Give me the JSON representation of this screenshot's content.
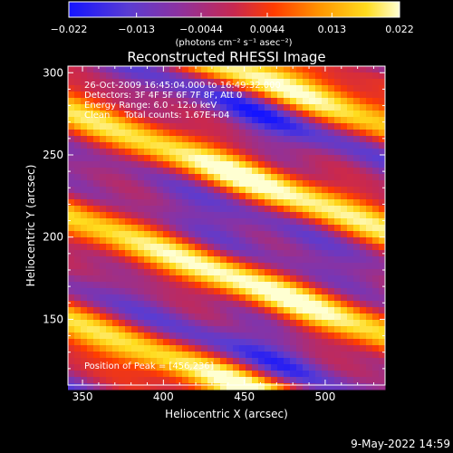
{
  "chart_data": {
    "type": "heatmap",
    "title": "Reconstructed RHESSI Image",
    "xlabel": "Heliocentric X (arcsec)",
    "ylabel": "Heliocentric Y (arcsec)",
    "xlim": [
      341,
      537
    ],
    "ylim": [
      110,
      304
    ],
    "x_ticks": [
      350,
      400,
      450,
      500
    ],
    "y_ticks": [
      150,
      200,
      250,
      300
    ],
    "colorbar": {
      "range": [
        -0.022,
        0.022
      ],
      "ticks": [
        "−0.022",
        "−0.013",
        "−0.0044",
        "0.0044",
        "0.013",
        "0.022"
      ],
      "tick_values": [
        -0.022,
        -0.013,
        -0.0044,
        0.0044,
        0.013,
        0.022
      ],
      "unit_label": "(photons cm⁻² s⁻¹ asec⁻²)",
      "colormap": [
        "#1414ff",
        "#5a3cd2",
        "#8c32a0",
        "#c82850",
        "#ff3c00",
        "#ff9600",
        "#ffdc1e",
        "#ffffd2"
      ]
    },
    "annotations": [
      "26-Oct-2009 16:45:04.000 to 16:49:32.000",
      "Detectors: 3F 4F 5F 6F 7F 8F, Att 0",
      "Energy Range: 6.0 - 12.0 keV",
      "Clean     Total counts: 1.67E+04"
    ],
    "peak_label": "Position of Peak = [456,236]",
    "peak_position": [
      456,
      236
    ],
    "fringe_pattern": {
      "slope_y_per_x": -0.366,
      "period_arcsec": 66.5,
      "reference_x": 456,
      "reference_y": 236,
      "secondary_period_arcsec": 31,
      "bright_core_x": [
        445,
        470
      ]
    }
  },
  "timestamp": "9-May-2022 14:59"
}
